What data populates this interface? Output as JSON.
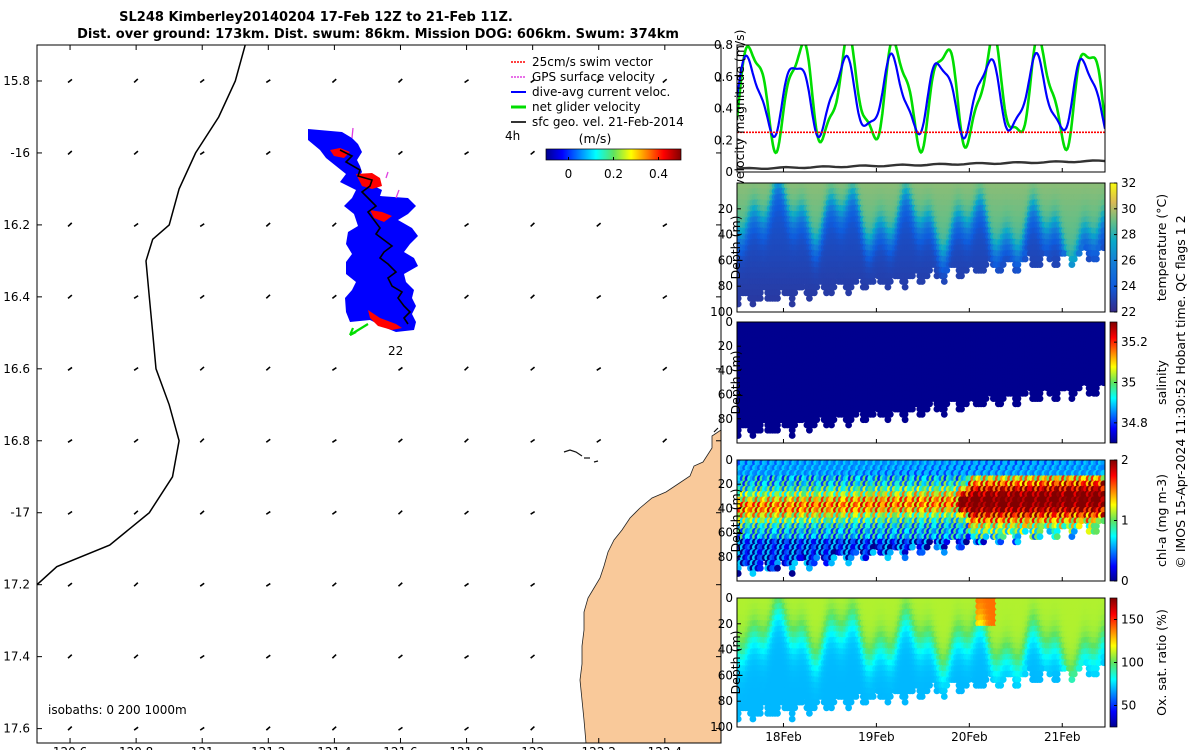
{
  "title_line1": "SL248 Kimberley20140204 17-Feb 12Z to 21-Feb 11Z.",
  "title_line2": "Dist. over ground: 173km. Dist. swum: 86km. Mission DOG: 606km. Swum: 374km",
  "side_note": "© IMOS 15-Apr-2024 11:30:52 Hobart time. QC flags 1  2",
  "colors": {
    "land": "#f9c99a",
    "track_fill": "#0000ff",
    "swim": "#ff0000",
    "gps": "#e040e0",
    "dive": "#0000ff",
    "net": "#00dd00",
    "sfc": "#000000"
  },
  "chart_data": [
    {
      "type": "scatter",
      "name": "map",
      "xlim": [
        120.5,
        122.57
      ],
      "ylim": [
        -17.64,
        -15.7
      ],
      "x_ticks": [
        120.6,
        120.8,
        121,
        121.2,
        121.4,
        121.6,
        121.8,
        122,
        122.2,
        122.4
      ],
      "x_tick_labels": [
        "120.6",
        "120.8",
        "121",
        "121.2",
        "121.4",
        "121.6",
        "121.8",
        "122",
        "122.2",
        "122.4"
      ],
      "y_ticks": [
        -15.8,
        -16,
        -16.2,
        -16.4,
        -16.6,
        -16.8,
        -17,
        -17.2,
        -17.4,
        -17.6
      ],
      "y_tick_labels": [
        "15.8",
        "-16",
        "16.2",
        "16.4",
        "16.6",
        "16.8",
        "-17",
        "17.2",
        "17.4",
        "17.6"
      ],
      "legend": [
        "25cm/s swim vector",
        "GPS surface velocity",
        "dive-avg current veloc.",
        "net glider velocity",
        "sfc geo. vel. 21-Feb-2014"
      ],
      "colorbar_label": "(m/s)",
      "colorbar_ticks": [
        "0",
        "0.2",
        "0.4"
      ],
      "colorbar_values": [
        0,
        0.2,
        0.4
      ],
      "colorbar_range": [
        -0.1,
        0.5
      ],
      "annotation_top": "4h",
      "annotation_end": "22",
      "isobath_note": "isobaths: 0   200  1000m",
      "isobath_1000m": [
        [
          120.5,
          -17.2
        ],
        [
          120.56,
          -17.15
        ],
        [
          120.72,
          -17.09
        ],
        [
          120.84,
          -17.0
        ],
        [
          120.91,
          -16.9
        ],
        [
          120.93,
          -16.8
        ],
        [
          120.9,
          -16.7
        ],
        [
          120.86,
          -16.6
        ],
        [
          120.85,
          -16.5
        ],
        [
          120.84,
          -16.4
        ],
        [
          120.83,
          -16.3
        ],
        [
          120.85,
          -16.24
        ],
        [
          120.9,
          -16.2
        ],
        [
          120.93,
          -16.1
        ],
        [
          120.98,
          -16.0
        ],
        [
          121.05,
          -15.9
        ],
        [
          121.1,
          -15.8
        ],
        [
          121.13,
          -15.7
        ]
      ],
      "glider_track": [
        [
          121.43,
          -16.0
        ],
        [
          121.46,
          -16.08
        ],
        [
          121.44,
          -16.16
        ],
        [
          121.49,
          -16.23
        ],
        [
          121.53,
          -16.28
        ],
        [
          121.55,
          -16.35
        ],
        [
          121.55,
          -16.42
        ],
        [
          121.56,
          -16.49
        ],
        [
          121.57,
          -16.51
        ]
      ]
    },
    {
      "type": "line",
      "name": "velocity",
      "ylabel": "velocity magnitude (m/s)",
      "ylim": [
        0,
        0.8
      ],
      "y_ticks": [
        0,
        0.2,
        0.4,
        0.6,
        0.8
      ],
      "x_range_days": [
        17.5,
        21.46
      ],
      "series": [
        {
          "name": "dive-avg current veloc.",
          "color": "#0000ff",
          "mean": 0.48,
          "amplitude": 0.22,
          "period_h": 12.4
        },
        {
          "name": "net glider velocity",
          "color": "#00dd00",
          "mean": 0.5,
          "amplitude": 0.3,
          "period_h": 12.4
        },
        {
          "name": "25cm/s swim vector",
          "color": "#ff0000",
          "constant": 0.25
        },
        {
          "name": "sfc geo. vel.",
          "color": "#333333",
          "start": 0.02,
          "end": 0.07
        }
      ]
    },
    {
      "type": "heatmap",
      "name": "temperature",
      "ylabel": "Depth (m)",
      "cbar_label": "temperature (°C)",
      "ylim": [
        0,
        100
      ],
      "y_ticks": [
        20,
        40,
        60,
        80,
        100
      ],
      "clim": [
        22,
        32
      ],
      "cbar_ticks": [
        22,
        24,
        26,
        28,
        30,
        32
      ],
      "surface_value": 29.5,
      "deep_value": 24.0,
      "colormap": "parula"
    },
    {
      "type": "heatmap",
      "name": "salinity",
      "ylabel": "Depth (m)",
      "cbar_label": "salinity",
      "ylim": [
        0,
        100
      ],
      "y_ticks": [
        0,
        20,
        40,
        60,
        80
      ],
      "clim": [
        34.7,
        35.3
      ],
      "cbar_ticks": [
        34.8,
        35,
        35.2
      ],
      "uniform_value": 34.7,
      "colormap": "jet"
    },
    {
      "type": "heatmap",
      "name": "chlorophyll",
      "ylabel": "Depth (m)",
      "cbar_label": "chl-a (mg m-3)",
      "ylim": [
        0,
        100
      ],
      "y_ticks": [
        0,
        20,
        40,
        60,
        80
      ],
      "clim": [
        0,
        2
      ],
      "cbar_ticks": [
        0,
        1,
        2
      ],
      "colormap": "jet"
    },
    {
      "type": "heatmap",
      "name": "oxygen",
      "ylabel": "Depth (m)",
      "cbar_label": "Ox. sat. ratio (%)",
      "ylim": [
        0,
        100
      ],
      "y_ticks": [
        0,
        20,
        40,
        60,
        80,
        100
      ],
      "clim": [
        25,
        175
      ],
      "cbar_ticks": [
        50,
        100,
        150
      ],
      "x_ticks_days": [
        18,
        19,
        20,
        21
      ],
      "x_tick_labels": [
        "18Feb",
        "19Feb",
        "20Feb",
        "21Feb"
      ],
      "colormap": "jet"
    }
  ]
}
